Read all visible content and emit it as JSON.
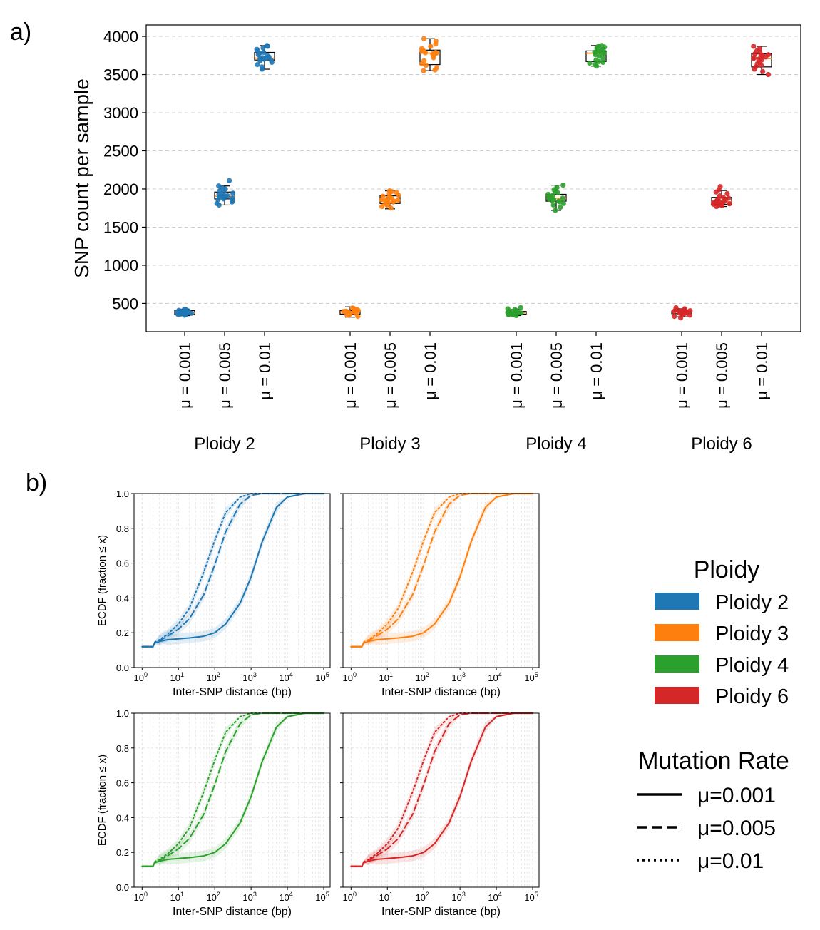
{
  "panel_labels": {
    "a": "a)",
    "b": "b)"
  },
  "colors": {
    "ploidy2": "#1f77b4",
    "ploidy3": "#ff7f0e",
    "ploidy4": "#2ca02c",
    "ploidy6": "#d62728",
    "median": "#ff7f0e",
    "grid": "#cccccc"
  },
  "chart_data": [
    {
      "type": "box",
      "ylabel": "SNP count per sample",
      "ylim": [
        130,
        4150
      ],
      "yticks": [
        "500",
        "1000",
        "1500",
        "2000",
        "2500",
        "3000",
        "3500",
        "4000"
      ],
      "mu_labels": [
        "μ = 0.001",
        "μ = 0.005",
        "μ = 0.01"
      ],
      "groups": [
        {
          "name": "Ploidy 2",
          "color_key": "ploidy2",
          "boxes": [
            {
              "mu": 0.001,
              "whislo": 340,
              "q1": 355,
              "med": 375,
              "q3": 405,
              "whishi": 425,
              "points": [
                345,
                350,
                355,
                360,
                362,
                365,
                368,
                370,
                372,
                375,
                378,
                380,
                385,
                390,
                395,
                400,
                405,
                410,
                420,
                425
              ]
            },
            {
              "mu": 0.005,
              "whislo": 1790,
              "q1": 1870,
              "med": 1905,
              "q3": 1960,
              "whishi": 2040,
              "points": [
                1790,
                1810,
                1830,
                1850,
                1860,
                1870,
                1880,
                1890,
                1900,
                1905,
                1910,
                1920,
                1930,
                1945,
                1960,
                1980,
                2000,
                2020,
                2040,
                2110
              ]
            },
            {
              "mu": 0.01,
              "whislo": 3570,
              "q1": 3690,
              "med": 3715,
              "q3": 3790,
              "whishi": 3880,
              "points": [
                3570,
                3600,
                3630,
                3660,
                3680,
                3690,
                3700,
                3710,
                3715,
                3720,
                3730,
                3750,
                3760,
                3780,
                3790,
                3810,
                3830,
                3850,
                3870,
                3880
              ]
            }
          ]
        },
        {
          "name": "Ploidy 3",
          "color_key": "ploidy3",
          "boxes": [
            {
              "mu": 0.001,
              "whislo": 320,
              "q1": 360,
              "med": 385,
              "q3": 405,
              "whishi": 455,
              "points": [
                330,
                345,
                355,
                360,
                365,
                370,
                375,
                380,
                385,
                388,
                390,
                395,
                398,
                400,
                405,
                410,
                415,
                420,
                430,
                440
              ]
            },
            {
              "mu": 0.005,
              "whislo": 1740,
              "q1": 1810,
              "med": 1855,
              "q3": 1910,
              "whishi": 1975,
              "points": [
                1750,
                1770,
                1790,
                1800,
                1810,
                1820,
                1830,
                1840,
                1850,
                1855,
                1860,
                1870,
                1880,
                1890,
                1905,
                1920,
                1940,
                1955,
                1965,
                1975
              ]
            },
            {
              "mu": 0.01,
              "whislo": 3550,
              "q1": 3630,
              "med": 3780,
              "q3": 3820,
              "whishi": 3970,
              "points": [
                3550,
                3560,
                3590,
                3620,
                3640,
                3680,
                3720,
                3750,
                3770,
                3780,
                3785,
                3790,
                3800,
                3810,
                3820,
                3840,
                3870,
                3900,
                3940,
                3970
              ]
            }
          ]
        },
        {
          "name": "Ploidy 4",
          "color_key": "ploidy4",
          "boxes": [
            {
              "mu": 0.001,
              "whislo": 340,
              "q1": 360,
              "med": 380,
              "q3": 395,
              "whishi": 420,
              "points": [
                340,
                350,
                355,
                360,
                362,
                365,
                370,
                372,
                375,
                378,
                380,
                383,
                386,
                390,
                395,
                400,
                410,
                420,
                430,
                445
              ]
            },
            {
              "mu": 0.005,
              "whislo": 1720,
              "q1": 1840,
              "med": 1880,
              "q3": 1930,
              "whishi": 2050,
              "points": [
                1720,
                1760,
                1790,
                1810,
                1830,
                1840,
                1850,
                1860,
                1870,
                1880,
                1885,
                1895,
                1905,
                1915,
                1930,
                1950,
                1970,
                1990,
                2020,
                2050
              ]
            },
            {
              "mu": 0.01,
              "whislo": 3610,
              "q1": 3670,
              "med": 3780,
              "q3": 3810,
              "whishi": 3880,
              "points": [
                3610,
                3630,
                3650,
                3660,
                3670,
                3690,
                3710,
                3740,
                3760,
                3775,
                3780,
                3790,
                3800,
                3805,
                3810,
                3830,
                3850,
                3860,
                3870,
                3880
              ]
            }
          ]
        },
        {
          "name": "Ploidy 6",
          "color_key": "ploidy6",
          "boxes": [
            {
              "mu": 0.001,
              "whislo": 325,
              "q1": 365,
              "med": 385,
              "q3": 400,
              "whishi": 430,
              "points": [
                310,
                330,
                345,
                355,
                365,
                370,
                375,
                378,
                382,
                385,
                388,
                392,
                395,
                398,
                400,
                405,
                412,
                420,
                430,
                445
              ]
            },
            {
              "mu": 0.005,
              "whislo": 1770,
              "q1": 1800,
              "med": 1835,
              "q3": 1890,
              "whishi": 1980,
              "points": [
                1770,
                1780,
                1790,
                1800,
                1805,
                1810,
                1820,
                1830,
                1835,
                1840,
                1850,
                1860,
                1870,
                1880,
                1890,
                1910,
                1940,
                1960,
                1990,
                2030
              ]
            },
            {
              "mu": 0.01,
              "whislo": 3500,
              "q1": 3600,
              "med": 3710,
              "q3": 3770,
              "whishi": 3870,
              "points": [
                3500,
                3540,
                3570,
                3600,
                3620,
                3640,
                3660,
                3690,
                3700,
                3710,
                3720,
                3730,
                3740,
                3750,
                3760,
                3770,
                3790,
                3810,
                3840,
                3870
              ]
            }
          ]
        }
      ]
    },
    {
      "type": "line",
      "subtype": "ecdf",
      "xscale": "log",
      "xlim": [
        0.6,
        150000
      ],
      "ylim": [
        0,
        1
      ],
      "xlabel": "Inter-SNP distance (bp)",
      "ylabel": "ECDF (fraction ≤ x)",
      "xtick_bases": [
        "10",
        "10",
        "10",
        "10",
        "10",
        "10"
      ],
      "xtick_exponents": [
        "0",
        "1",
        "2",
        "3",
        "4",
        "5"
      ],
      "yticks": [
        "0.0",
        "0.2",
        "0.4",
        "0.6",
        "0.8",
        "1.0"
      ],
      "x_sample_bp": [
        1,
        1.5,
        2,
        2.2,
        3,
        5,
        10,
        20,
        50,
        100,
        200,
        500,
        1000,
        2000,
        5000,
        10000,
        30000,
        100000
      ],
      "series_by_mu": [
        {
          "mu": 0.001,
          "linestyle": "solid",
          "values": [
            0.12,
            0.12,
            0.12,
            0.14,
            0.15,
            0.16,
            0.165,
            0.17,
            0.18,
            0.2,
            0.25,
            0.37,
            0.52,
            0.72,
            0.92,
            0.98,
            1.0,
            1.0
          ]
        },
        {
          "mu": 0.005,
          "linestyle": "dashed",
          "values": [
            0.12,
            0.12,
            0.12,
            0.14,
            0.155,
            0.18,
            0.22,
            0.28,
            0.42,
            0.59,
            0.78,
            0.94,
            0.99,
            1.0,
            1.0,
            1.0,
            1.0,
            1.0
          ]
        },
        {
          "mu": 0.01,
          "linestyle": "dotted",
          "values": [
            0.12,
            0.12,
            0.12,
            0.145,
            0.16,
            0.19,
            0.25,
            0.34,
            0.55,
            0.73,
            0.89,
            0.98,
            1.0,
            1.0,
            1.0,
            1.0,
            1.0,
            1.0
          ]
        }
      ],
      "panels": [
        {
          "name": "Ploidy 2",
          "color_key": "ploidy2"
        },
        {
          "name": "Ploidy 3",
          "color_key": "ploidy3"
        },
        {
          "name": "Ploidy 4",
          "color_key": "ploidy4"
        },
        {
          "name": "Ploidy 6",
          "color_key": "ploidy6"
        }
      ]
    }
  ],
  "legend": {
    "ploidy_title": "Ploidy",
    "ploidy_items": [
      {
        "label": "Ploidy 2",
        "color_key": "ploidy2"
      },
      {
        "label": "Ploidy 3",
        "color_key": "ploidy3"
      },
      {
        "label": "Ploidy 4",
        "color_key": "ploidy4"
      },
      {
        "label": "Ploidy 6",
        "color_key": "ploidy6"
      }
    ],
    "mutation_title": "Mutation Rate",
    "mutation_items": [
      {
        "label": "μ=0.001",
        "linestyle": "solid"
      },
      {
        "label": "μ=0.005",
        "linestyle": "dashed"
      },
      {
        "label": "μ=0.01",
        "linestyle": "dotted"
      }
    ]
  }
}
